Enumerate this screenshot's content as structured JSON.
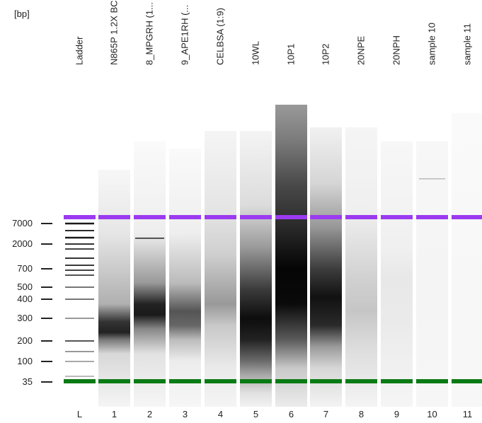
{
  "unit_label": "[bp]",
  "size_markers": [
    "7000",
    "2000",
    "700",
    "500",
    "400",
    "300",
    "200",
    "100",
    "35"
  ],
  "lanes": [
    {
      "sample": "Ladder",
      "number": "L"
    },
    {
      "sample": "N865P 1.2X BC",
      "number": "1"
    },
    {
      "sample": "8_MPGRH (1...",
      "number": "2"
    },
    {
      "sample": "9_APE1RH (...",
      "number": "3"
    },
    {
      "sample": "CELBSA (1:9)",
      "number": "4"
    },
    {
      "sample": "10WL",
      "number": "5"
    },
    {
      "sample": "10P1",
      "number": "6"
    },
    {
      "sample": "10P2",
      "number": "7"
    },
    {
      "sample": "20NPE",
      "number": "8"
    },
    {
      "sample": "20NPH",
      "number": "9"
    },
    {
      "sample": "sample 10",
      "number": "10"
    },
    {
      "sample": "sample 11",
      "number": "11"
    }
  ],
  "colors": {
    "upper_marker": "#9b3bf0",
    "lower_marker": "#0a7a14",
    "lane_background": "#f4f4f4"
  }
}
